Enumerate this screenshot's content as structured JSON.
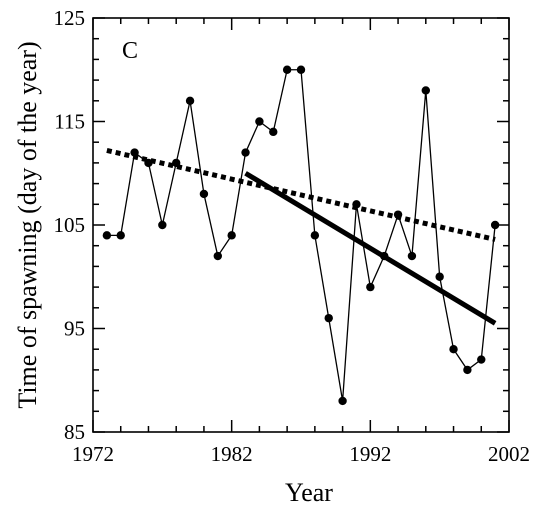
{
  "chart_data": {
    "type": "line",
    "panel_label": "C",
    "xlabel": "Year",
    "ylabel": "Time of spawning (day of the year)",
    "xlim": [
      1972,
      2002
    ],
    "ylim": [
      85,
      125
    ],
    "xticks": [
      "1972",
      "1982",
      "1992",
      "2002"
    ],
    "yticks": [
      "85",
      "95",
      "105",
      "115",
      "125"
    ],
    "grid": false,
    "series": [
      {
        "style": "line-with-markers",
        "x": [
          1973,
          1974,
          1975,
          1976,
          1977,
          1978,
          1979,
          1980,
          1981,
          1982,
          1983,
          1984,
          1985,
          1986,
          1987,
          1988,
          1989,
          1990,
          1991,
          1992,
          1993,
          1994,
          1995,
          1996,
          1997,
          1998,
          1999,
          2000,
          2001
        ],
        "values": [
          104,
          104,
          112,
          111,
          105,
          111,
          117,
          108,
          102,
          104,
          112,
          115,
          114,
          120,
          120,
          104,
          96,
          88,
          107,
          99,
          102,
          106,
          102,
          118,
          100,
          93,
          91,
          92,
          105
        ]
      },
      {
        "style": "dotted-trend",
        "x": [
          1973,
          2001
        ],
        "values": [
          112.2,
          103.6
        ]
      },
      {
        "style": "solid-trend",
        "x": [
          1983,
          2001
        ],
        "values": [
          110,
          95.5
        ]
      }
    ]
  }
}
